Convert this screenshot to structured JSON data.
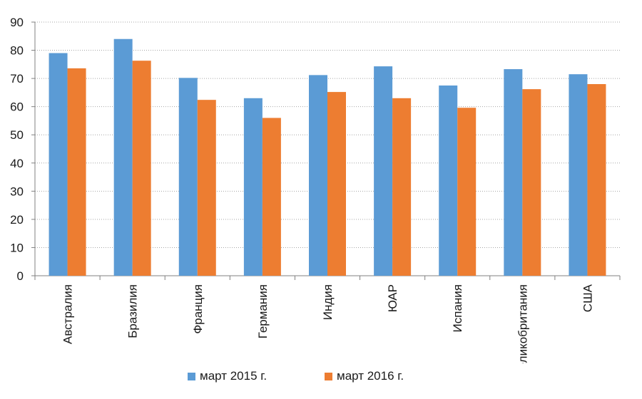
{
  "chart_data": {
    "type": "bar",
    "title": "",
    "xlabel": "",
    "ylabel": "",
    "categories": [
      "Австралия",
      "Бразилия",
      "Франция",
      "Германия",
      "Индия",
      "ЮАР",
      "Испания",
      "Великобритания",
      "США"
    ],
    "series": [
      {
        "name": "март 2015 г.",
        "color": "#5b9bd5",
        "values": [
          79,
          84,
          70.2,
          63,
          71.2,
          74.3,
          67.5,
          73.3,
          71.5
        ]
      },
      {
        "name": "март 2016 г.",
        "color": "#ed7d31",
        "values": [
          73.6,
          76.3,
          62.4,
          56,
          65.2,
          63,
          59.6,
          66.2,
          68
        ]
      }
    ],
    "ylim": [
      0,
      90
    ],
    "yticks": [
      0,
      10,
      20,
      30,
      40,
      50,
      60,
      70,
      80,
      90
    ],
    "grid": "horizontal dotted",
    "legend_position": "bottom"
  }
}
